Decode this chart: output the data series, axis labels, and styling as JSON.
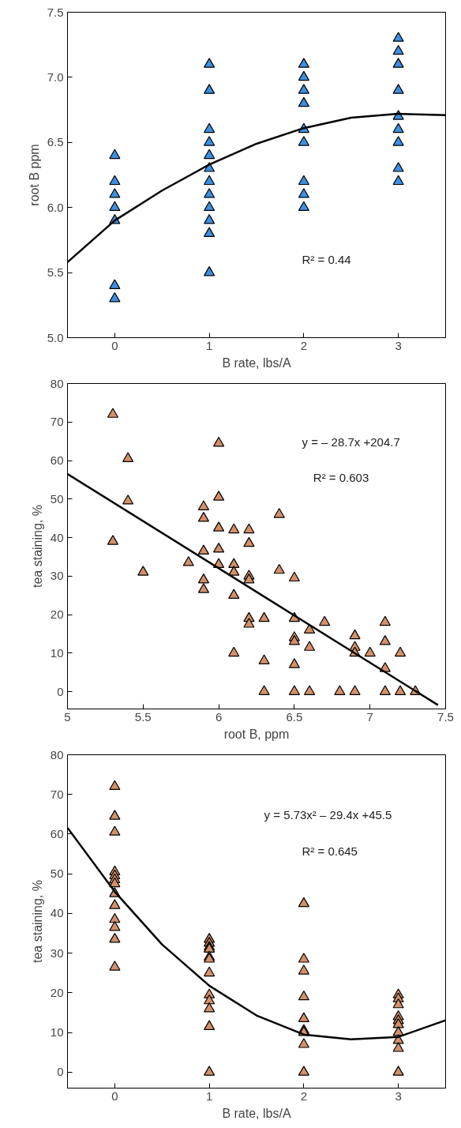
{
  "chart_data": [
    {
      "type": "scatter",
      "xlabel": "B rate, lbs/A",
      "ylabel": "root B ppm",
      "marker": "triangle",
      "grid": false,
      "xlim": [
        -0.5,
        3.5
      ],
      "xticks": [
        0,
        1,
        2,
        3
      ],
      "ylim": [
        5,
        7.5
      ],
      "yticks": [
        {
          "value": 5,
          "label": "5.0"
        },
        5.5,
        {
          "value": 6,
          "label": "6.0"
        },
        6.5,
        {
          "value": 7,
          "label": "7.0"
        },
        7.5
      ],
      "annotations": [
        "R² = 0.44"
      ],
      "series": [
        {
          "color": "#3d8fe0",
          "x": [
            0,
            0,
            0,
            0,
            0,
            0,
            0,
            1,
            1,
            1,
            1,
            1,
            1,
            1,
            1,
            1,
            1,
            1,
            1,
            2,
            2,
            2,
            2,
            2,
            2,
            2,
            2,
            2,
            3,
            3,
            3,
            3,
            3,
            3,
            3,
            3,
            3
          ],
          "values": [
            6.4,
            6.2,
            6.1,
            6.0,
            5.9,
            5.4,
            5.3,
            7.1,
            6.9,
            6.6,
            6.5,
            6.4,
            6.3,
            6.2,
            6.1,
            6.0,
            5.9,
            5.8,
            5.5,
            7.1,
            7.0,
            6.9,
            6.8,
            6.6,
            6.5,
            6.2,
            6.1,
            6.0,
            7.3,
            7.2,
            7.1,
            6.9,
            6.7,
            6.6,
            6.5,
            6.3,
            6.2
          ]
        },
        {
          "type": "line",
          "color": "#000000",
          "marker": "none",
          "x": [
            -0.5,
            0,
            0.5,
            1,
            1.5,
            2,
            2.5,
            3,
            3.5
          ],
          "values": [
            5.58,
            5.9,
            6.13,
            6.33,
            6.49,
            6.61,
            6.69,
            6.72,
            6.71
          ]
        }
      ]
    },
    {
      "type": "scatter",
      "xlabel": "root B, ppm",
      "ylabel": "tea staining, %",
      "marker": "triangle",
      "grid": false,
      "xlim": [
        5,
        7.5
      ],
      "xticks": [
        5,
        5.5,
        6,
        6.5,
        7,
        7.5
      ],
      "ylim": [
        -4.5,
        80
      ],
      "yticks": [
        0,
        10,
        20,
        30,
        40,
        50,
        60,
        70,
        80
      ],
      "annotations": [
        "y = – 28.7x +204.7",
        "R² = 0.603"
      ],
      "series": [
        {
          "color": "#d4906a",
          "x": [
            5.3,
            5.3,
            5.4,
            5.4,
            5.5,
            5.8,
            5.9,
            5.9,
            5.9,
            5.9,
            5.9,
            6.0,
            6.0,
            6.0,
            6.0,
            6.0,
            6.1,
            6.1,
            6.1,
            6.1,
            6.1,
            6.2,
            6.2,
            6.2,
            6.2,
            6.2,
            6.2,
            6.3,
            6.3,
            6.3,
            6.4,
            6.4,
            6.5,
            6.5,
            6.5,
            6.5,
            6.5,
            6.5,
            6.6,
            6.6,
            6.6,
            6.7,
            6.8,
            6.9,
            6.9,
            6.9,
            6.9,
            7.0,
            7.1,
            7.1,
            7.1,
            7.1,
            7.2,
            7.2,
            7.3
          ],
          "values": [
            72,
            39,
            60.5,
            49.5,
            31,
            33.5,
            48,
            45,
            36.5,
            29,
            26.5,
            64.5,
            50.5,
            42.5,
            37,
            33,
            42,
            33,
            31,
            25,
            10,
            42,
            38.5,
            30,
            29,
            19,
            17.5,
            19,
            8,
            0,
            46,
            31.5,
            29.5,
            19,
            14,
            13,
            7,
            0,
            16,
            11.5,
            0,
            18,
            0,
            14.5,
            11.5,
            10,
            0,
            10,
            18,
            13,
            6,
            0,
            10,
            0,
            0
          ]
        },
        {
          "type": "line",
          "color": "#000000",
          "marker": "none",
          "x": [
            5,
            7.45
          ],
          "values": [
            56.5,
            -3.5
          ]
        }
      ]
    },
    {
      "type": "scatter",
      "xlabel": "B rate, lbs/A",
      "ylabel": "tea staining, %",
      "marker": "triangle",
      "grid": false,
      "xlim": [
        -0.5,
        3.5
      ],
      "xticks": [
        0,
        1,
        2,
        3
      ],
      "ylim": [
        -4,
        80
      ],
      "yticks": [
        0,
        10,
        20,
        30,
        40,
        50,
        60,
        70,
        80
      ],
      "annotations": [
        "y = 5.73x² – 29.4x +45.5",
        "R² = 0.645"
      ],
      "series": [
        {
          "color": "#d4906a",
          "x": [
            0,
            0,
            0,
            0,
            0,
            0,
            0,
            0,
            0,
            0,
            0,
            0,
            0,
            1,
            1,
            1,
            1,
            1,
            1,
            1,
            1,
            1,
            1,
            1,
            1,
            2,
            2,
            2,
            2,
            2,
            2,
            2,
            2,
            2,
            3,
            3,
            3,
            3,
            3,
            3,
            3,
            3,
            3,
            3
          ],
          "values": [
            72,
            64.5,
            60.5,
            50.5,
            49.5,
            48.5,
            47.5,
            45,
            42,
            38.5,
            36.5,
            33.5,
            26.5,
            33.5,
            32.5,
            31.5,
            31,
            29,
            28.5,
            25,
            19.5,
            18,
            16,
            11.5,
            0,
            42.5,
            28.5,
            25.5,
            19,
            13.5,
            10.5,
            10,
            7,
            0,
            19.5,
            18.5,
            17,
            14,
            13,
            12,
            10,
            8,
            6,
            0
          ]
        },
        {
          "type": "line",
          "color": "#000000",
          "marker": "none",
          "x": [
            -0.5,
            0,
            0.5,
            1,
            1.5,
            2,
            2.5,
            3,
            3.5
          ],
          "values": [
            61.6,
            45.5,
            32.2,
            21.8,
            14.3,
            9.5,
            8.3,
            8.9,
            13.1
          ]
        }
      ]
    }
  ]
}
